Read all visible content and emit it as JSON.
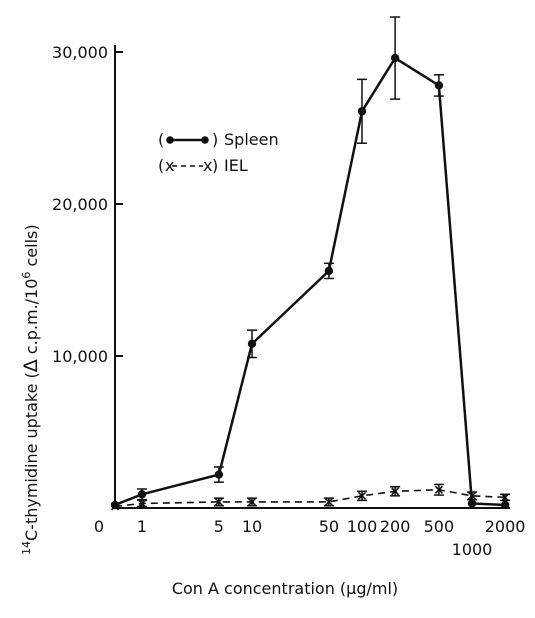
{
  "chart_data": {
    "type": "line",
    "xlabel": "Con A concentration (μg/ml)",
    "ylabel": "14C-thymidine uptake (Δ c.p.m./10⁶ cells)",
    "ylabel_parts": {
      "sup_mass": "14",
      "main": "C-thymidine  uptake  (",
      "delta": "Δ",
      "unit": " c.p.m./10",
      "sup_exp": "6",
      "tail": " cells)"
    },
    "x_axis": {
      "scale": "log (with 0 offset)",
      "tick_labels": [
        "0",
        "1",
        "5",
        "10",
        "50",
        "100",
        "200",
        "500",
        "1000",
        "2000"
      ]
    },
    "y_axis": {
      "range": [
        0,
        31500
      ],
      "tick_labels": [
        "10,000",
        "20,000",
        "30,000"
      ],
      "tick_values": [
        10000,
        20000,
        30000
      ]
    },
    "series": [
      {
        "name": "Spleen",
        "legend_label": "Spleen",
        "legend_key": "(•—•)",
        "line": "solid",
        "marker": "dot",
        "color": "#111111",
        "x": [
          0,
          1,
          5,
          10,
          50,
          100,
          200,
          500,
          1000,
          2000
        ],
        "y": [
          200,
          900,
          2200,
          10800,
          15600,
          26100,
          29600,
          27800,
          300,
          200
        ],
        "err": [
          0,
          350,
          500,
          900,
          500,
          2100,
          2700,
          700,
          0,
          0
        ]
      },
      {
        "name": "IEL",
        "legend_label": "IEL",
        "legend_key": "(x--x)",
        "line": "dashed",
        "marker": "x",
        "color": "#111111",
        "x": [
          0,
          1,
          5,
          10,
          50,
          100,
          200,
          500,
          1000,
          2000
        ],
        "y": [
          100,
          300,
          400,
          400,
          400,
          800,
          1100,
          1200,
          800,
          700
        ],
        "err": [
          0,
          200,
          250,
          250,
          250,
          300,
          300,
          350,
          250,
          200
        ]
      }
    ],
    "legend": {
      "placement": "upper-left"
    },
    "grid": false
  }
}
